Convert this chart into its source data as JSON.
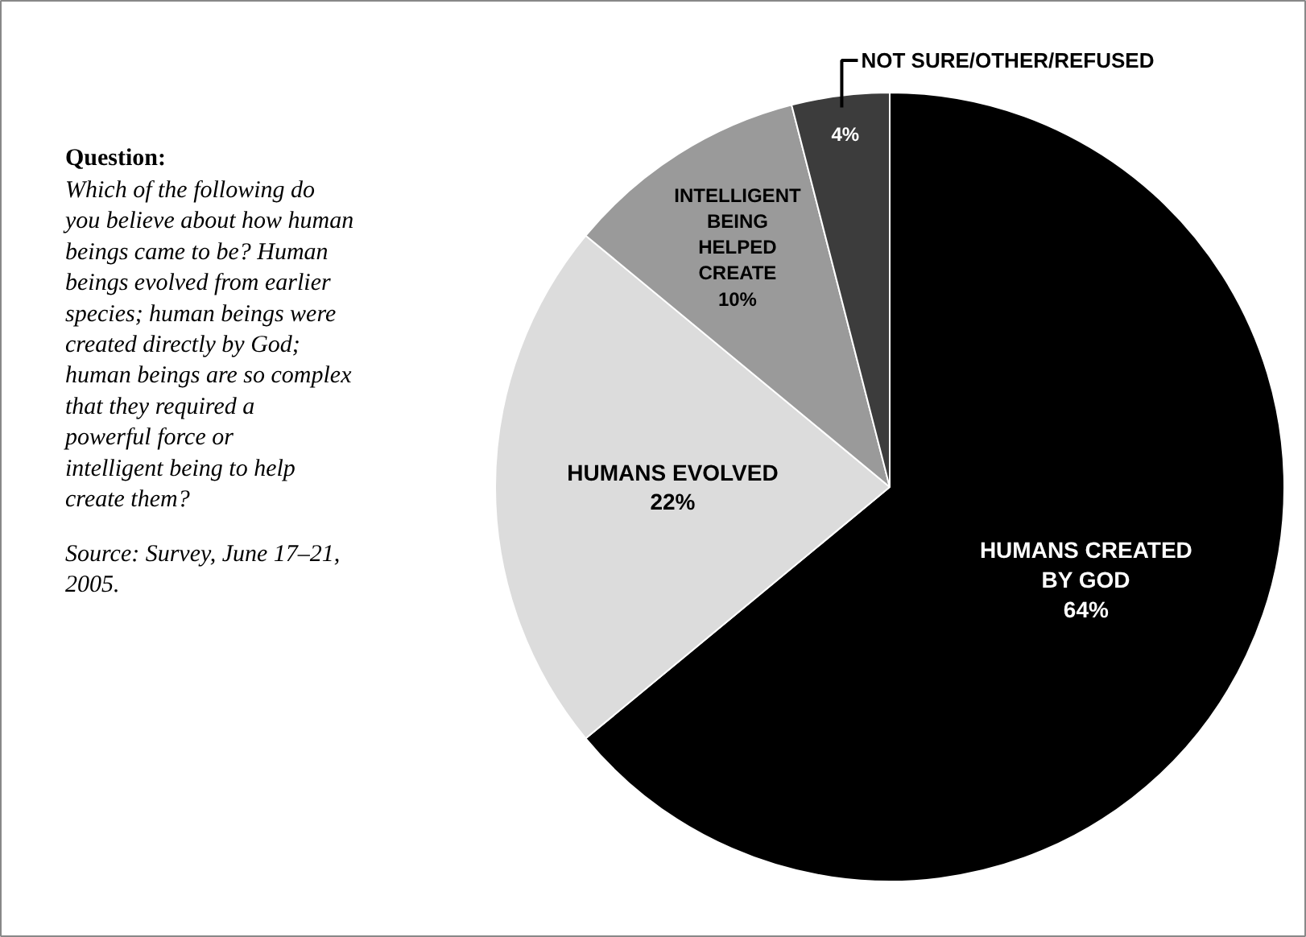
{
  "chart_data": {
    "type": "pie",
    "categories": [
      "HUMANS CREATED BY GOD",
      "HUMANS EVOLVED",
      "INTELLIGENT BEING HELPED CREATE",
      "NOT SURE/OTHER/REFUSED"
    ],
    "values": [
      64,
      22,
      10,
      4
    ],
    "colors": [
      "#000000",
      "#dcdcdc",
      "#9a9a9a",
      "#3c3c3c"
    ],
    "value_labels": [
      "64%",
      "22%",
      "10%",
      "4%"
    ],
    "annotations": [
      "Question:",
      "Which of the following do you believe about how human beings came to be? Human beings evolved from earlier species; human beings were created directly by God; human beings are so complex that they required a powerful force or intelligent being to help create them?",
      "Source: Survey, June 17–21, 2005."
    ]
  }
}
